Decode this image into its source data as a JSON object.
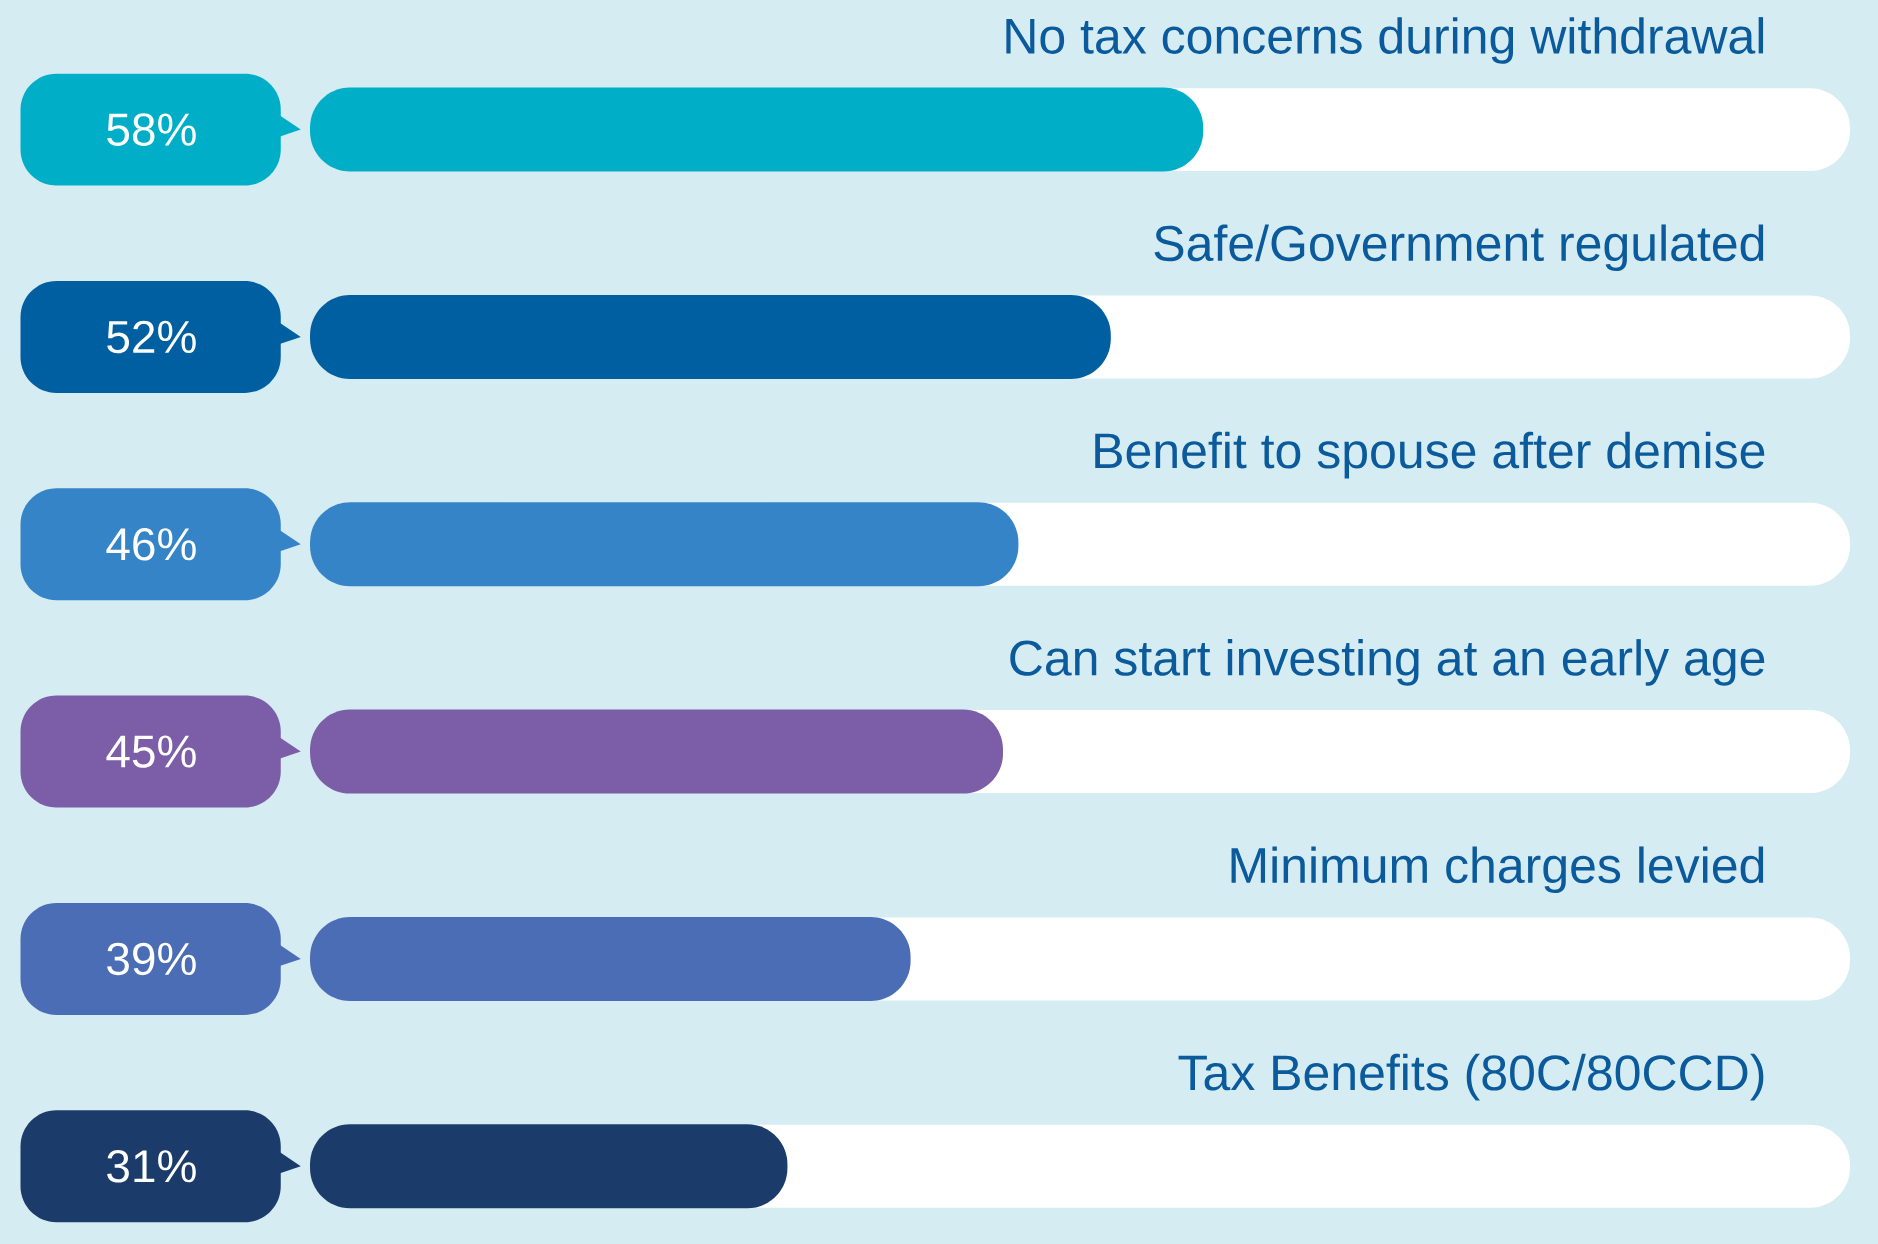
{
  "chart_data": {
    "type": "bar",
    "orientation": "horizontal",
    "categories": [
      "No tax concerns during withdrawal",
      "Safe/Government regulated",
      "Benefit to spouse after demise",
      "Can start investing at an early age",
      "Minimum charges levied",
      "Tax Benefits (80C/80CCD)"
    ],
    "values": [
      58,
      52,
      46,
      45,
      39,
      31
    ],
    "value_labels": [
      "58%",
      "52%",
      "46%",
      "45%",
      "39%",
      "31%"
    ],
    "colors": [
      "#00aec7",
      "#005fa0",
      "#3584c8",
      "#7b5ea7",
      "#4a6db5",
      "#1b3c6b"
    ],
    "xlim": [
      0,
      100
    ]
  }
}
